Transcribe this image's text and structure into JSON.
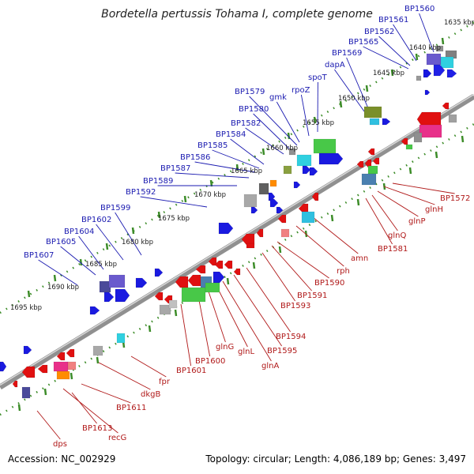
{
  "title": "Bordetella pertussis Tohama I, complete genome",
  "footer": {
    "accession": "Accession: NC_002929",
    "summary": "Topology: circular; Length: 4,086,189 bp; Genes: 3,497"
  },
  "colors": {
    "backbone": "#909090",
    "forward_gene": "#1010e0",
    "reverse_gene": "#e01010",
    "forward_label": "#1a1ab0",
    "reverse_label": "#b01818",
    "tick": "#3c8c28"
  },
  "scale_labels": [
    "1635 kbp",
    "1640 kbp",
    "1645 kbp",
    "1650 kbp",
    "1655 kbp",
    "1660 kbp",
    "1665 kbp",
    "1670 kbp",
    "1675 kbp",
    "1680 kbp",
    "1685 kbp",
    "1690 kbp",
    "1695 kbp"
  ],
  "forward_labels": [
    "BP1560",
    "BP1561",
    "BP1562",
    "BP1565",
    "BP1569",
    "dapA",
    "spoT",
    "rpoZ",
    "gmk",
    "BP1579",
    "BP1580",
    "BP1582",
    "BP1584",
    "BP1585",
    "BP1586",
    "BP1587",
    "BP1589",
    "BP1592",
    "BP1599",
    "BP1602",
    "BP1604",
    "BP1605",
    "BP1607"
  ],
  "reverse_labels": [
    "BP1572",
    "glnH",
    "glnP",
    "glnQ",
    "BP1581",
    "amn",
    "rph",
    "BP1590",
    "BP1591",
    "BP1593",
    "BP1594",
    "BP1595",
    "glnA",
    "glnL",
    "glnG",
    "BP1600",
    "BP1601",
    "fpr",
    "dkgB",
    "BP1611",
    "BP1613",
    "recG",
    "dps"
  ]
}
